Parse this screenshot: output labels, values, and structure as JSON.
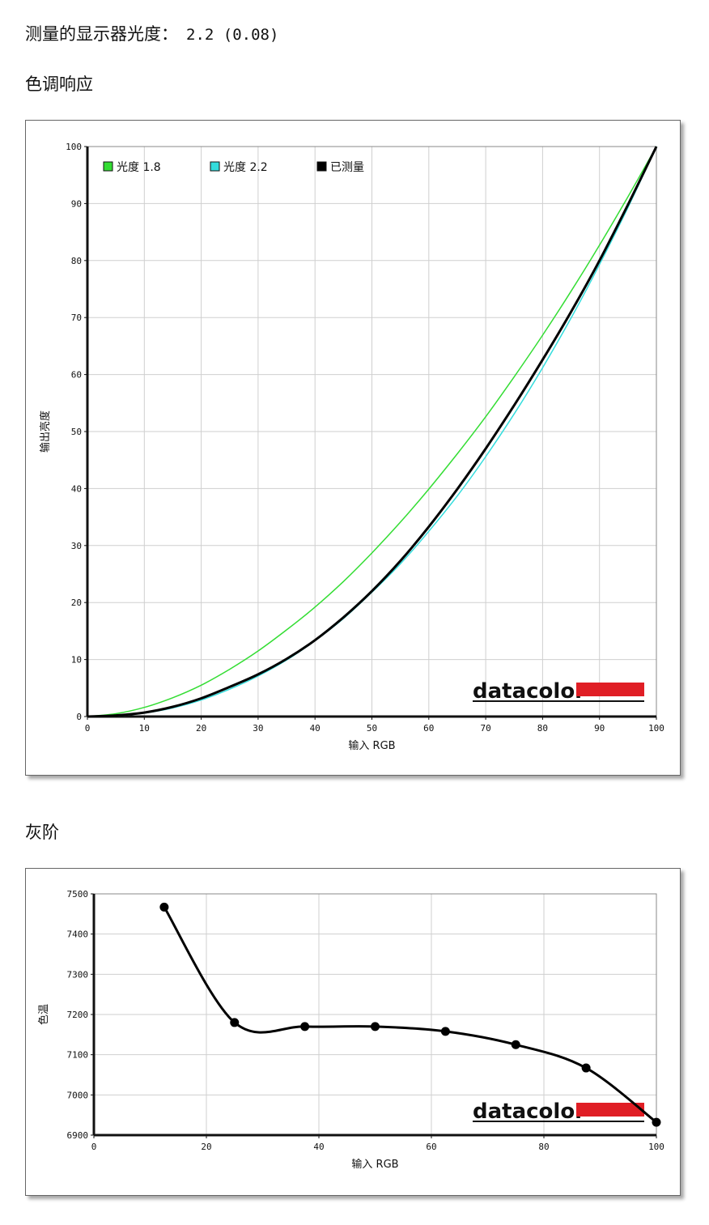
{
  "header": {
    "gamma_label": "测量的显示器光度：",
    "gamma_value": "2.2 (0.08)",
    "tone_response_title": "色调响应",
    "grayscale_title": "灰阶"
  },
  "brand": {
    "name": "datacolor",
    "accent_color": "#e01e25"
  },
  "chart_data": [
    {
      "type": "line",
      "title": "色调响应",
      "xlabel": "输入 RGB",
      "ylabel": "输出亮度",
      "xlim": [
        0,
        100
      ],
      "ylim": [
        0,
        100
      ],
      "grid": true,
      "legend_position": "top-left",
      "x_ticks": [
        "0",
        "10",
        "20",
        "30",
        "40",
        "50",
        "60",
        "70",
        "80",
        "90",
        "100"
      ],
      "y_ticks": [
        "0",
        "10",
        "20",
        "30",
        "40",
        "50",
        "60",
        "70",
        "80",
        "90",
        "100"
      ],
      "series": [
        {
          "name": "光度 1.8",
          "color": "#33dd33",
          "x": [
            0,
            5,
            10,
            15,
            20,
            25,
            30,
            35,
            40,
            45,
            50,
            55,
            60,
            65,
            70,
            75,
            80,
            85,
            90,
            95,
            100
          ],
          "y": [
            0,
            0.5,
            1.6,
            3.3,
            5.5,
            8.3,
            11.5,
            15.2,
            19.2,
            23.7,
            28.7,
            34.1,
            39.9,
            46.1,
            52.6,
            59.6,
            66.9,
            74.6,
            82.7,
            91.2,
            100
          ]
        },
        {
          "name": "光度 2.2",
          "color": "#33dddd",
          "x": [
            0,
            5,
            10,
            15,
            20,
            25,
            30,
            35,
            40,
            45,
            50,
            55,
            60,
            65,
            70,
            75,
            80,
            85,
            90,
            95,
            100
          ],
          "y": [
            0,
            0.1,
            0.6,
            1.5,
            2.9,
            4.8,
            7.1,
            9.9,
            13.3,
            17.2,
            21.8,
            26.8,
            32.5,
            38.7,
            45.6,
            53.1,
            61.2,
            69.9,
            79.3,
            89.3,
            100
          ]
        },
        {
          "name": "已测量",
          "color": "#000000",
          "x": [
            0,
            5,
            10,
            15,
            20,
            25,
            30,
            35,
            40,
            45,
            50,
            55,
            60,
            65,
            70,
            75,
            80,
            85,
            90,
            95,
            100
          ],
          "y": [
            0,
            0.2,
            0.7,
            1.7,
            3.2,
            5.2,
            7.4,
            10.1,
            13.4,
            17.4,
            22.0,
            27.3,
            33.3,
            39.9,
            47.0,
            54.6,
            62.6,
            71.0,
            80.0,
            89.8,
            100
          ]
        }
      ]
    },
    {
      "type": "line",
      "title": "灰阶",
      "xlabel": "输入 RGB",
      "ylabel": "色温",
      "xlim": [
        0,
        100
      ],
      "ylim": [
        6900,
        7500
      ],
      "grid": true,
      "x_ticks": [
        "0",
        "20",
        "40",
        "60",
        "80",
        "100"
      ],
      "y_ticks": [
        "6900",
        "7000",
        "7100",
        "7200",
        "7300",
        "7400",
        "7500"
      ],
      "series": [
        {
          "name": "",
          "color": "#000000",
          "x": [
            12.5,
            25,
            37.5,
            50,
            62.5,
            75,
            87.5,
            100
          ],
          "y": [
            7467,
            7180,
            7170,
            7170,
            7158,
            7125,
            7067,
            6932
          ]
        }
      ]
    }
  ]
}
